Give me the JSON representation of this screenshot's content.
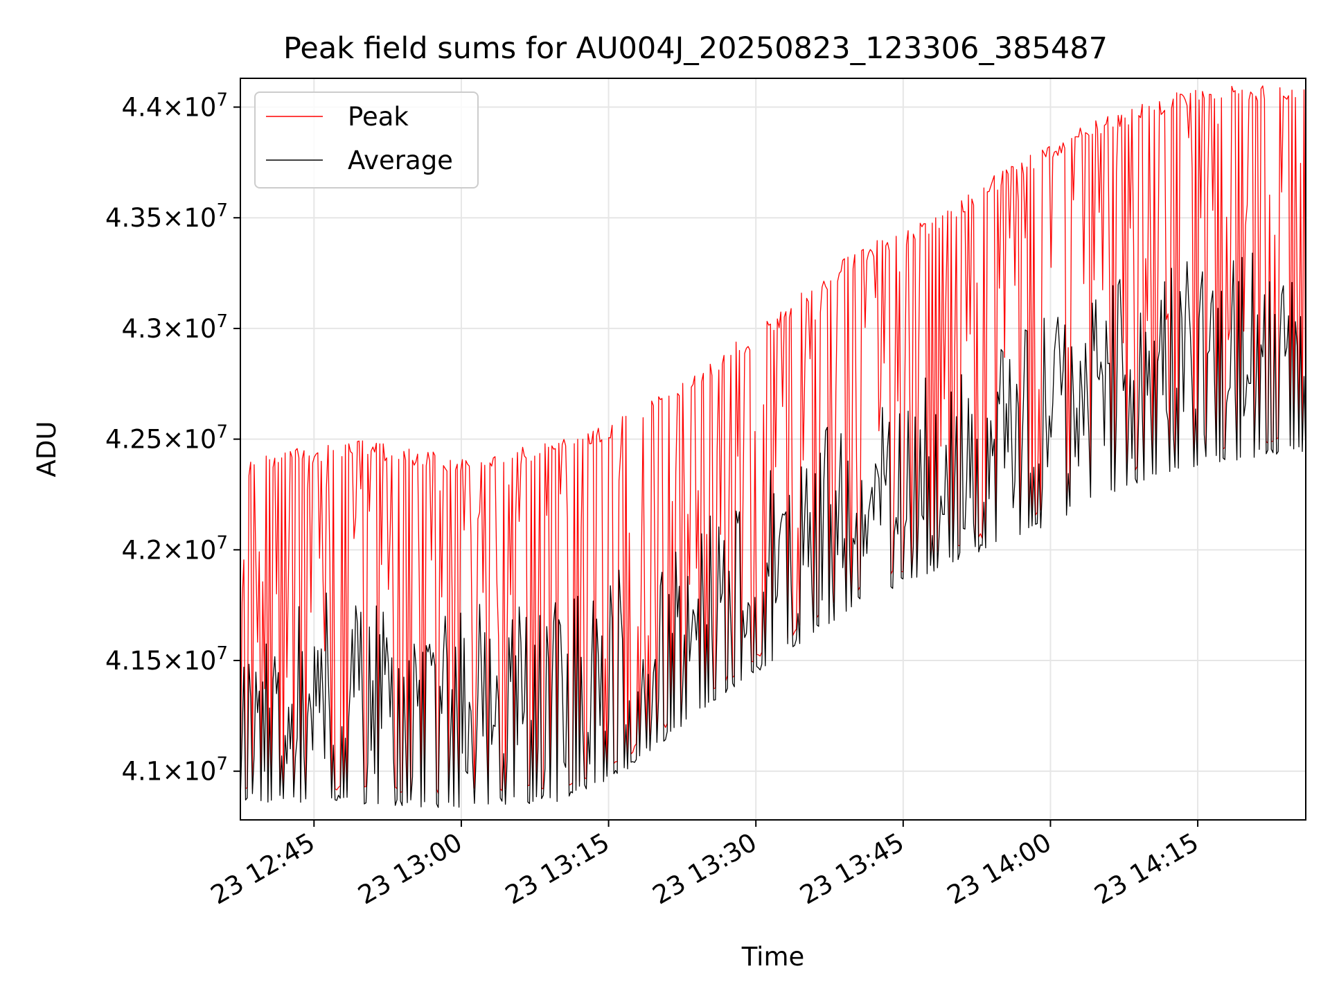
{
  "chart_data": {
    "type": "line",
    "title": "Peak field sums for AU004J_20250823_123306_385487",
    "xlabel": "Time",
    "ylabel": "ADU",
    "x_range": [
      "2025-08-23 12:37:30",
      "2025-08-23 14:26:00"
    ],
    "xlim": [
      "2025-08-23 12:37:30",
      "2025-08-23 14:26:00"
    ],
    "ylim": [
      40780000,
      44130000
    ],
    "x_ticks": [
      {
        "t": "2025-08-23 12:45",
        "label": "23 12:45"
      },
      {
        "t": "2025-08-23 13:00",
        "label": "23 13:00"
      },
      {
        "t": "2025-08-23 13:15",
        "label": "23 13:15"
      },
      {
        "t": "2025-08-23 13:30",
        "label": "23 13:30"
      },
      {
        "t": "2025-08-23 13:45",
        "label": "23 13:45"
      },
      {
        "t": "2025-08-23 14:00",
        "label": "23 14:00"
      },
      {
        "t": "2025-08-23 14:15",
        "label": "23 14:15"
      }
    ],
    "y_ticks": [
      {
        "value": 41000000,
        "mantissa": "4.1",
        "exponent": "7"
      },
      {
        "value": 41500000,
        "mantissa": "4.15",
        "exponent": "7"
      },
      {
        "value": 42000000,
        "mantissa": "4.2",
        "exponent": "7"
      },
      {
        "value": 42500000,
        "mantissa": "4.25",
        "exponent": "7"
      },
      {
        "value": 43000000,
        "mantissa": "4.3",
        "exponent": "7"
      },
      {
        "value": 43500000,
        "mantissa": "4.35",
        "exponent": "7"
      },
      {
        "value": 44000000,
        "mantissa": "4.4",
        "exponent": "7"
      }
    ],
    "grid": true,
    "legend_position": "top-left",
    "series": [
      {
        "name": "Peak",
        "color": "#ff0000",
        "baseline_knots": [
          [
            "2025-08-23 12:37:30",
            42400000
          ],
          [
            "2025-08-23 12:42:00",
            42450000
          ],
          [
            "2025-08-23 12:50:00",
            42500000
          ],
          [
            "2025-08-23 13:00:00",
            42420000
          ],
          [
            "2025-08-23 13:08:00",
            42480000
          ],
          [
            "2025-08-23 13:14:00",
            42550000
          ],
          [
            "2025-08-23 13:20:00",
            42700000
          ],
          [
            "2025-08-23 13:30:00",
            43000000
          ],
          [
            "2025-08-23 13:40:00",
            43350000
          ],
          [
            "2025-08-23 13:50:00",
            43550000
          ],
          [
            "2025-08-23 13:56:00",
            43750000
          ],
          [
            "2025-08-23 14:05:00",
            43950000
          ],
          [
            "2025-08-23 14:15:00",
            44100000
          ],
          [
            "2025-08-23 14:26:00",
            44100000
          ]
        ]
      },
      {
        "name": "Average",
        "color": "#000000",
        "baseline_knots": [
          [
            "2025-08-23 12:37:30",
            40900000
          ],
          [
            "2025-08-23 12:50:00",
            40890000
          ],
          [
            "2025-08-23 13:00:00",
            40870000
          ],
          [
            "2025-08-23 13:10:00",
            40900000
          ],
          [
            "2025-08-23 13:15:00",
            40980000
          ],
          [
            "2025-08-23 13:20:00",
            41150000
          ],
          [
            "2025-08-23 13:30:00",
            41480000
          ],
          [
            "2025-08-23 13:40:00",
            41780000
          ],
          [
            "2025-08-23 13:50:00",
            41980000
          ],
          [
            "2025-08-23 14:00:00",
            42150000
          ],
          [
            "2025-08-23 14:05:00",
            42280000
          ],
          [
            "2025-08-23 14:15:00",
            42420000
          ],
          [
            "2025-08-23 14:26:00",
            42480000
          ]
        ]
      }
    ]
  }
}
